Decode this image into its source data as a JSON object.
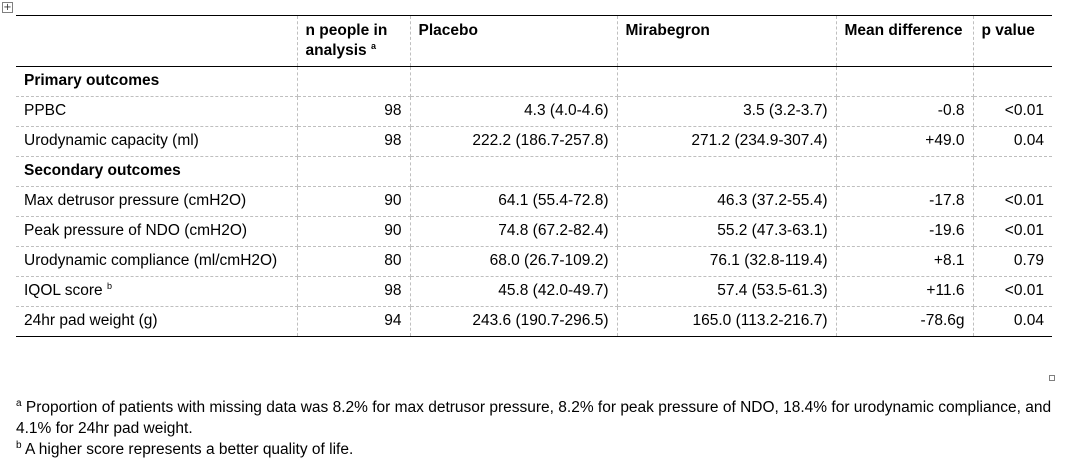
{
  "icons": {
    "table_handle": "move-handle-icon"
  },
  "table": {
    "headers": {
      "n": "n people in analysis",
      "n_sup": "a",
      "placebo": "Placebo",
      "mirabegron": "Mirabegron",
      "mean_diff": "Mean difference",
      "p": "p value"
    },
    "sections": {
      "primary": "Primary outcomes",
      "secondary": "Secondary outcomes"
    },
    "rows": [
      {
        "label": "PPBC",
        "n": "98",
        "placebo": "4.3 (4.0-4.6)",
        "mirabegron": "3.5 (3.2-3.7)",
        "diff": "-0.8",
        "p": "<0.01"
      },
      {
        "label": "Urodynamic capacity (ml)",
        "n": "98",
        "placebo": "222.2 (186.7-257.8)",
        "mirabegron": "271.2 (234.9-307.4)",
        "diff": "+49.0",
        "p": "0.04"
      },
      {
        "label": "Max detrusor pressure (cmH2O)",
        "n": "90",
        "placebo": "64.1 (55.4-72.8)",
        "mirabegron": "46.3 (37.2-55.4)",
        "diff": "-17.8",
        "p": "<0.01"
      },
      {
        "label": "Peak pressure of NDO (cmH2O)",
        "n": "90",
        "placebo": "74.8 (67.2-82.4)",
        "mirabegron": "55.2 (47.3-63.1)",
        "diff": "-19.6",
        "p": "<0.01"
      },
      {
        "label": "Urodynamic compliance (ml/cmH2O)",
        "n": "80",
        "placebo": "68.0 (26.7-109.2)",
        "mirabegron": "76.1 (32.8-119.4)",
        "diff": "+8.1",
        "p": "0.79"
      },
      {
        "label": "IQOL score",
        "label_sup": "b",
        "n": "98",
        "placebo": "45.8 (42.0-49.7)",
        "mirabegron": "57.4 (53.5-61.3)",
        "diff": "+11.6",
        "p": "<0.01"
      },
      {
        "label": "24hr pad weight (g)",
        "n": "94",
        "placebo": "243.6 (190.7-296.5)",
        "mirabegron": "165.0 (113.2-216.7)",
        "diff": "-78.6g",
        "p": "0.04"
      }
    ]
  },
  "footnotes": [
    {
      "marker": "a",
      "text": "Proportion of patients with missing data was 8.2% for max detrusor pressure, 8.2% for peak pressure of NDO, 18.4% for urodynamic compliance, and 4.1% for 24hr pad weight."
    },
    {
      "marker": "b",
      "text": "A higher score represents a better quality of life."
    }
  ]
}
